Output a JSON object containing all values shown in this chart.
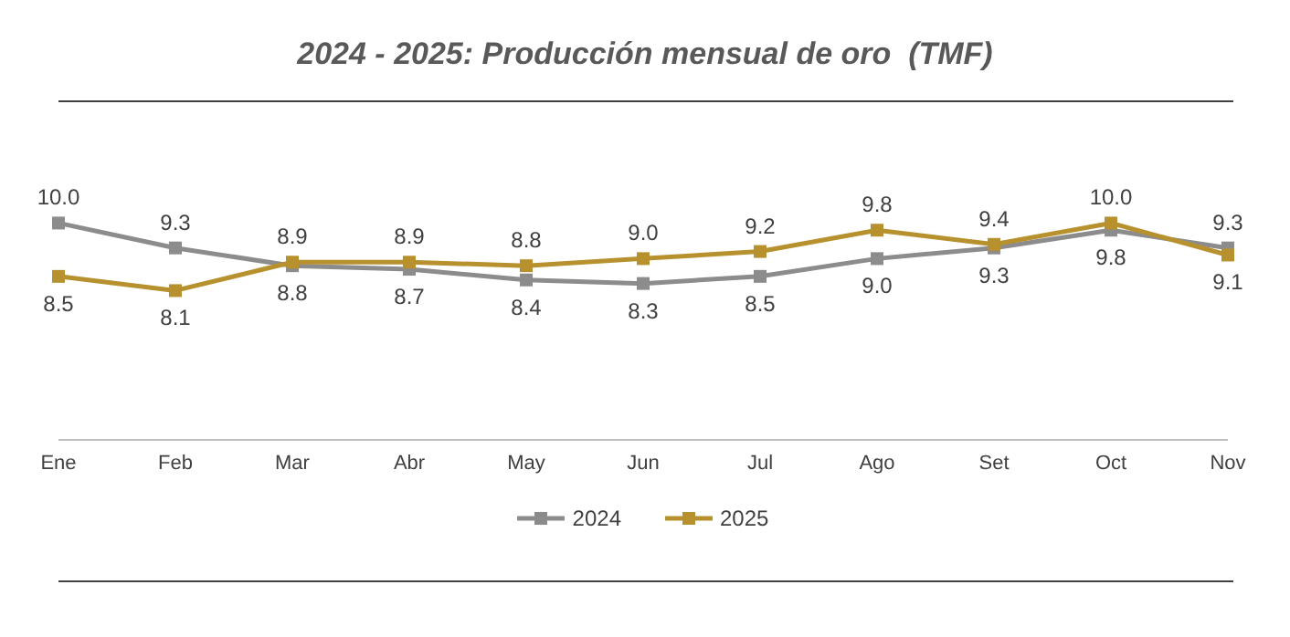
{
  "chart_data": {
    "type": "line",
    "title": "2024 - 2025: Producción mensual de oro  (TMF)",
    "categories": [
      "Ene",
      "Feb",
      "Mar",
      "Abr",
      "May",
      "Jun",
      "Jul",
      "Ago",
      "Set",
      "Oct",
      "Nov"
    ],
    "series": [
      {
        "name": "2024",
        "color": "#8c8c8c",
        "values": [
          10.0,
          9.3,
          8.8,
          8.7,
          8.4,
          8.3,
          8.5,
          9.0,
          9.3,
          9.8,
          9.3
        ],
        "value_labels": [
          "10.0",
          "9.3",
          "8.8",
          "8.7",
          "8.4",
          "8.3",
          "8.5",
          "9.0",
          "9.3",
          "9.8",
          "9.3"
        ]
      },
      {
        "name": "2025",
        "color": "#b8912f",
        "values": [
          8.5,
          8.1,
          8.9,
          8.9,
          8.8,
          9.0,
          9.2,
          9.8,
          9.4,
          10.0,
          9.1
        ],
        "value_labels": [
          "8.5",
          "8.1",
          "8.9",
          "8.9",
          "8.8",
          "9.0",
          "9.2",
          "9.8",
          "9.4",
          "10.0",
          "9.1"
        ]
      }
    ],
    "marker": "square",
    "legend": "bottom"
  }
}
